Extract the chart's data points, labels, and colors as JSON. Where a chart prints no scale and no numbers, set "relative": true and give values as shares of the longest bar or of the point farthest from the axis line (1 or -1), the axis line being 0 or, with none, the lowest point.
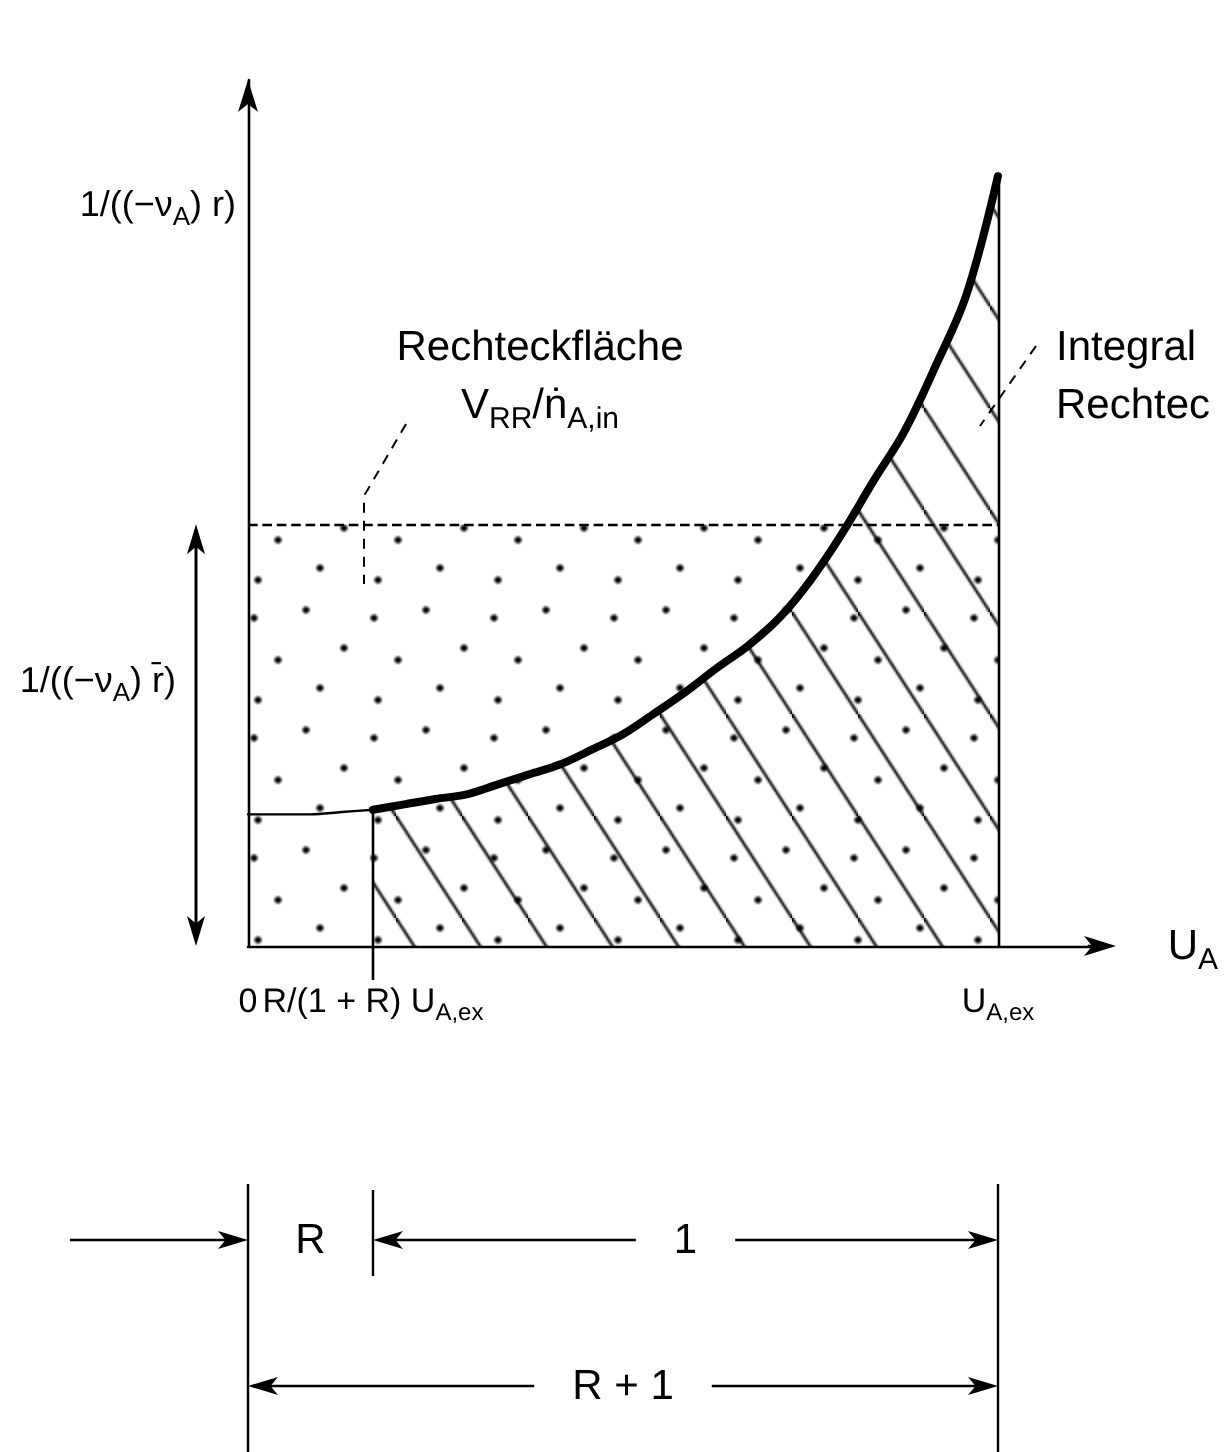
{
  "chart_data": {
    "type": "line",
    "relative": true,
    "xlabel": "U$_{A}$",
    "ylabel": "1/((−ν$_{A}$) r)",
    "categories": [
      "0",
      null,
      null,
      null,
      "R/(1 + R) U$_{A,ex}$",
      null,
      null,
      null,
      null,
      null,
      null,
      null,
      null,
      null,
      null,
      null,
      null,
      null,
      null,
      null,
      null,
      null,
      null,
      null,
      "U$_{A,ex}$",
      null,
      null,
      null
    ],
    "marker": "none",
    "series": [
      {
        "color": "#000000",
        "values": [
          0.171,
          0.171,
          0.171,
          0.174,
          0.177,
          null,
          null,
          null,
          null,
          null,
          null,
          null,
          null,
          null,
          null,
          null,
          null,
          null,
          null,
          null,
          null,
          null,
          null,
          null,
          null,
          null,
          null,
          null
        ]
      },
      {
        "type": "area",
        "color": "#000000",
        "values": [
          null,
          null,
          null,
          null,
          0.177,
          0.184,
          0.191,
          0.197,
          0.21,
          0.223,
          0.236,
          0.255,
          0.275,
          0.302,
          0.33,
          0.361,
          0.39,
          0.426,
          0.475,
          0.535,
          0.603,
          0.668,
          0.753,
          0.847,
          1,
          null,
          null,
          null
        ]
      }
    ],
    "ref_lines": [
      {
        "axis": "y",
        "value": 0.548,
        "label": "1/((−ν$_{A}$) r̄)",
        "line_style": "dashed",
        "color": "#000000"
      }
    ],
    "bands": [
      {
        "axis": "y",
        "from": 0,
        "to": 0.548,
        "label": "Rechteckfläche\nV$_{RR}$/ṅ$_{A,in}$",
        "color": "#000000"
      }
    ],
    "annotations": [
      "Integral\nRechtec",
      "R",
      "1",
      "R + 1"
    ]
  }
}
